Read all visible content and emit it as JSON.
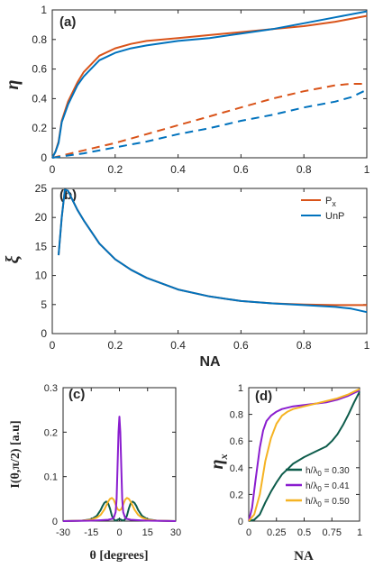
{
  "colors": {
    "px": "#d95319",
    "unp": "#0072bd",
    "green": "#0d5c4b",
    "purple": "#8a1dcf",
    "yellow": "#f5b323"
  },
  "chart_data": [
    {
      "id": "a",
      "type": "line",
      "panel_label": "(a)",
      "xlabel": "",
      "ylabel": "η",
      "xlim": [
        0,
        1
      ],
      "ylim": [
        0,
        1
      ],
      "xticks": [
        "0",
        "0.2",
        "0.4",
        "0.6",
        "0.8",
        "1"
      ],
      "yticks": [
        "0",
        "0.2",
        "0.4",
        "0.6",
        "0.8",
        "1"
      ],
      "grid": false,
      "series": [
        {
          "key": "px_solid",
          "color_key": "px",
          "dash": false,
          "x": [
            0,
            0.01,
            0.02,
            0.03,
            0.05,
            0.08,
            0.1,
            0.15,
            0.2,
            0.25,
            0.3,
            0.4,
            0.5,
            0.6,
            0.7,
            0.8,
            0.9,
            1.0
          ],
          "y": [
            0,
            0.04,
            0.11,
            0.25,
            0.38,
            0.51,
            0.58,
            0.69,
            0.74,
            0.77,
            0.79,
            0.81,
            0.83,
            0.85,
            0.87,
            0.89,
            0.92,
            0.96
          ]
        },
        {
          "key": "unp_solid",
          "color_key": "unp",
          "dash": false,
          "x": [
            0,
            0.01,
            0.02,
            0.03,
            0.05,
            0.08,
            0.1,
            0.15,
            0.2,
            0.25,
            0.3,
            0.4,
            0.5,
            0.6,
            0.7,
            0.8,
            0.9,
            1.0
          ],
          "y": [
            0,
            0.04,
            0.1,
            0.24,
            0.36,
            0.49,
            0.55,
            0.66,
            0.71,
            0.74,
            0.76,
            0.79,
            0.81,
            0.84,
            0.87,
            0.91,
            0.95,
            0.99
          ]
        },
        {
          "key": "px_dash",
          "color_key": "px",
          "dash": true,
          "x": [
            0,
            0.1,
            0.2,
            0.3,
            0.4,
            0.5,
            0.6,
            0.7,
            0.8,
            0.9,
            0.95,
            1.0
          ],
          "y": [
            0,
            0.05,
            0.1,
            0.16,
            0.22,
            0.28,
            0.34,
            0.4,
            0.45,
            0.49,
            0.5,
            0.5
          ]
        },
        {
          "key": "unp_dash",
          "color_key": "unp",
          "dash": true,
          "x": [
            0,
            0.1,
            0.2,
            0.3,
            0.4,
            0.5,
            0.6,
            0.7,
            0.8,
            0.9,
            0.95,
            1.0
          ],
          "y": [
            0,
            0.03,
            0.07,
            0.11,
            0.16,
            0.2,
            0.25,
            0.29,
            0.34,
            0.38,
            0.41,
            0.46
          ]
        }
      ]
    },
    {
      "id": "b",
      "type": "line",
      "panel_label": "(b)",
      "xlabel": "NA",
      "ylabel": "ξ",
      "xlim": [
        0,
        1
      ],
      "ylim": [
        0,
        25
      ],
      "xticks": [
        "0",
        "0.2",
        "0.4",
        "0.6",
        "0.8",
        "1"
      ],
      "yticks": [
        "0",
        "5",
        "10",
        "15",
        "20",
        "25"
      ],
      "grid": false,
      "legend_position": "top-right",
      "legend": [
        {
          "label": "P",
          "sub": "x",
          "color_key": "px"
        },
        {
          "label": "UnP",
          "sub": "",
          "color_key": "unp"
        }
      ],
      "series": [
        {
          "key": "px",
          "color_key": "px",
          "dash": false,
          "x": [
            0.02,
            0.03,
            0.04,
            0.05,
            0.06,
            0.08,
            0.1,
            0.15,
            0.2,
            0.25,
            0.3,
            0.4,
            0.5,
            0.6,
            0.7,
            0.8,
            0.9,
            0.95,
            1.0
          ],
          "y": [
            13.5,
            20,
            24.8,
            24.6,
            23.5,
            21.3,
            19.5,
            15.5,
            12.8,
            11.0,
            9.6,
            7.6,
            6.4,
            5.6,
            5.2,
            5.0,
            4.9,
            4.9,
            4.9
          ]
        },
        {
          "key": "unp",
          "color_key": "unp",
          "dash": false,
          "x": [
            0.02,
            0.03,
            0.04,
            0.05,
            0.06,
            0.08,
            0.1,
            0.15,
            0.2,
            0.25,
            0.3,
            0.4,
            0.5,
            0.6,
            0.7,
            0.8,
            0.9,
            0.95,
            1.0
          ],
          "y": [
            13.5,
            20,
            24.8,
            24.6,
            23.5,
            21.3,
            19.5,
            15.5,
            12.8,
            11.0,
            9.6,
            7.6,
            6.4,
            5.6,
            5.2,
            4.9,
            4.6,
            4.3,
            3.7
          ]
        }
      ]
    },
    {
      "id": "c",
      "type": "line",
      "panel_label": "(c)",
      "xlabel": "θ [degrees]",
      "ylabel": "I(θ,π/2) [a.u]",
      "xlim": [
        -30,
        30
      ],
      "ylim": [
        0,
        0.3
      ],
      "xticks": [
        "-30",
        "-15",
        "0",
        "15",
        "30"
      ],
      "yticks": [
        "0",
        "0.1",
        "0.2",
        "0.3"
      ],
      "grid": false,
      "series": [
        {
          "key": "h030",
          "color_key": "green",
          "dash": false,
          "x": [
            -30,
            -20,
            -15,
            -12,
            -10,
            -9,
            -8,
            -7,
            -6,
            -5,
            -4,
            -3,
            -2,
            -1,
            0,
            1,
            2,
            3,
            4,
            5,
            6,
            7,
            8,
            9,
            10,
            12,
            15,
            20,
            30
          ],
          "y": [
            0,
            0.001,
            0.004,
            0.012,
            0.025,
            0.034,
            0.041,
            0.044,
            0.04,
            0.028,
            0.012,
            0.004,
            0.001,
            0.003,
            0.005,
            0.003,
            0.001,
            0.004,
            0.012,
            0.028,
            0.04,
            0.044,
            0.041,
            0.034,
            0.025,
            0.012,
            0.004,
            0.001,
            0
          ]
        },
        {
          "key": "h050",
          "color_key": "yellow",
          "dash": false,
          "x": [
            -30,
            -20,
            -15,
            -12,
            -10,
            -8,
            -7,
            -6,
            -5,
            -4,
            -3,
            -2,
            -1,
            0,
            1,
            2,
            3,
            4,
            5,
            6,
            7,
            8,
            10,
            12,
            15,
            20,
            30
          ],
          "y": [
            0,
            0.001,
            0.003,
            0.008,
            0.014,
            0.026,
            0.035,
            0.044,
            0.05,
            0.052,
            0.048,
            0.037,
            0.027,
            0.024,
            0.027,
            0.037,
            0.048,
            0.052,
            0.05,
            0.044,
            0.035,
            0.026,
            0.014,
            0.008,
            0.003,
            0.001,
            0
          ]
        },
        {
          "key": "h041",
          "color_key": "purple",
          "dash": false,
          "x": [
            -30,
            -15,
            -10,
            -6,
            -4,
            -3,
            -2,
            -1.5,
            -1,
            -0.5,
            0,
            0.5,
            1,
            1.5,
            2,
            3,
            4,
            6,
            10,
            15,
            30
          ],
          "y": [
            0,
            0.001,
            0.002,
            0.003,
            0.005,
            0.008,
            0.02,
            0.05,
            0.12,
            0.2,
            0.235,
            0.2,
            0.12,
            0.05,
            0.02,
            0.008,
            0.005,
            0.003,
            0.002,
            0.001,
            0
          ]
        }
      ]
    },
    {
      "id": "d",
      "type": "line",
      "panel_label": "(d)",
      "xlabel": "NA",
      "ylabel": "η",
      "ylabel_sub": "x",
      "xlim": [
        0,
        1
      ],
      "ylim": [
        0,
        1
      ],
      "xticks": [
        "0",
        "0.25",
        "0.5",
        "0.75",
        "1"
      ],
      "yticks": [
        "0",
        "0.2",
        "0.4",
        "0.6",
        "0.8",
        "1"
      ],
      "grid": false,
      "legend_position": "bottom-right",
      "legend": [
        {
          "label": "h/λ",
          "sub": "0",
          "value": " = 0.30",
          "color_key": "green"
        },
        {
          "label": "h/λ",
          "sub": "0",
          "value": " = 0.41",
          "color_key": "purple"
        },
        {
          "label": "h/λ",
          "sub": "0",
          "value": " = 0.50",
          "color_key": "yellow"
        }
      ],
      "series": [
        {
          "key": "h030",
          "color_key": "green",
          "dash": false,
          "x": [
            0,
            0.05,
            0.1,
            0.15,
            0.2,
            0.25,
            0.3,
            0.35,
            0.4,
            0.5,
            0.6,
            0.7,
            0.75,
            0.8,
            0.85,
            0.9,
            0.95,
            1.0
          ],
          "y": [
            0,
            0.01,
            0.05,
            0.14,
            0.22,
            0.29,
            0.35,
            0.39,
            0.43,
            0.48,
            0.52,
            0.56,
            0.6,
            0.65,
            0.72,
            0.8,
            0.89,
            0.97
          ]
        },
        {
          "key": "h041",
          "color_key": "purple",
          "dash": false,
          "x": [
            0,
            0.03,
            0.06,
            0.1,
            0.13,
            0.16,
            0.2,
            0.25,
            0.3,
            0.4,
            0.5,
            0.6,
            0.7,
            0.8,
            0.9,
            0.95,
            1.0
          ],
          "y": [
            0,
            0.1,
            0.3,
            0.55,
            0.68,
            0.75,
            0.79,
            0.82,
            0.84,
            0.86,
            0.87,
            0.88,
            0.89,
            0.91,
            0.94,
            0.96,
            0.98
          ]
        },
        {
          "key": "h050",
          "color_key": "yellow",
          "dash": false,
          "x": [
            0,
            0.05,
            0.1,
            0.15,
            0.2,
            0.25,
            0.3,
            0.35,
            0.4,
            0.5,
            0.6,
            0.7,
            0.8,
            0.9,
            0.95,
            1.0
          ],
          "y": [
            0,
            0.05,
            0.2,
            0.45,
            0.62,
            0.73,
            0.79,
            0.82,
            0.84,
            0.86,
            0.88,
            0.9,
            0.92,
            0.95,
            0.97,
            0.99
          ]
        }
      ]
    }
  ]
}
